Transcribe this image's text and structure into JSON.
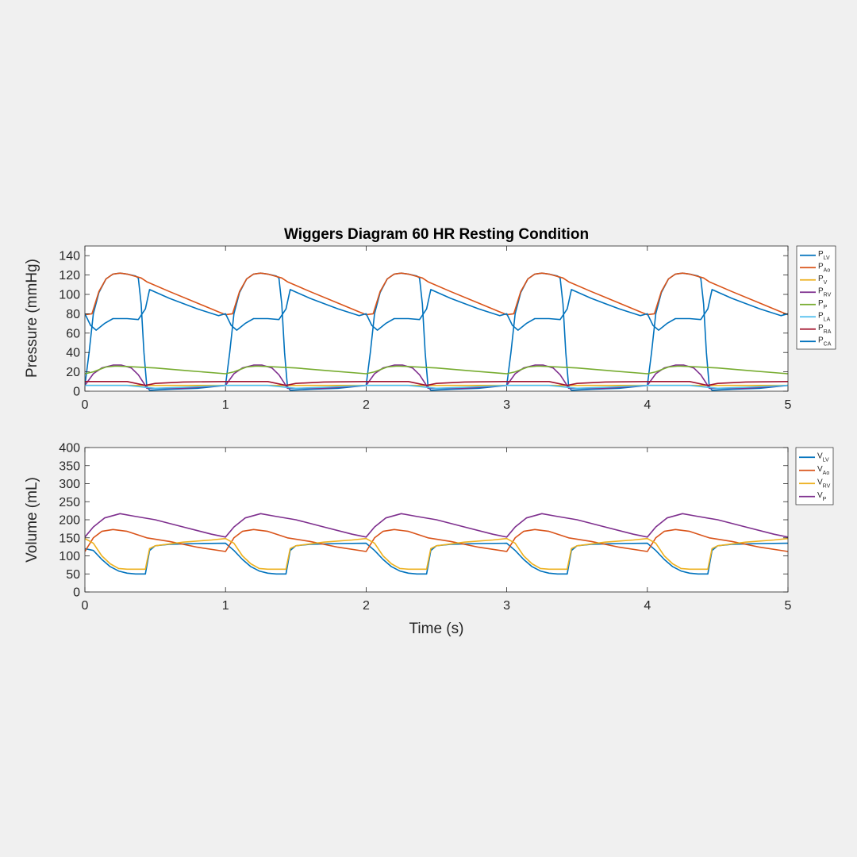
{
  "figure": {
    "title": "Wiggers Diagram 60 HR Resting Condition",
    "background": "#f0f0f0"
  },
  "chart_data": [
    {
      "type": "line",
      "title": "Wiggers Diagram 60 HR Resting Condition",
      "xlabel": "",
      "ylabel": "Pressure (mmHg)",
      "xlim": [
        0,
        5
      ],
      "ylim": [
        0,
        150
      ],
      "xticks": [
        0,
        1,
        2,
        3,
        4,
        5
      ],
      "yticks": [
        0,
        20,
        40,
        60,
        80,
        100,
        120,
        140
      ],
      "grid": false,
      "legend_position": "outside-right",
      "period": 1.0,
      "series": [
        {
          "name": "P",
          "sub": "LV",
          "color": "#0072bd",
          "one_cycle": [
            [
              0.0,
              6
            ],
            [
              0.03,
              40
            ],
            [
              0.06,
              80
            ],
            [
              0.1,
              102
            ],
            [
              0.15,
              116
            ],
            [
              0.2,
              121
            ],
            [
              0.25,
              122
            ],
            [
              0.3,
              121
            ],
            [
              0.36,
              119
            ],
            [
              0.38,
              117
            ],
            [
              0.4,
              90
            ],
            [
              0.42,
              40
            ],
            [
              0.44,
              5
            ],
            [
              0.46,
              1
            ],
            [
              0.6,
              2
            ],
            [
              0.8,
              3
            ],
            [
              1.0,
              6
            ]
          ]
        },
        {
          "name": "P",
          "sub": "Ao",
          "color": "#d95319",
          "one_cycle": [
            [
              0.0,
              79
            ],
            [
              0.05,
              80
            ],
            [
              0.1,
              103
            ],
            [
              0.15,
              116
            ],
            [
              0.2,
              121
            ],
            [
              0.25,
              122
            ],
            [
              0.3,
              121
            ],
            [
              0.4,
              117
            ],
            [
              0.44,
              113
            ],
            [
              0.6,
              103
            ],
            [
              0.8,
              91
            ],
            [
              0.95,
              82
            ],
            [
              1.0,
              79
            ]
          ]
        },
        {
          "name": "P",
          "sub": "V",
          "color": "#edb120",
          "one_cycle": [
            [
              0.0,
              6
            ],
            [
              0.1,
              6
            ],
            [
              0.5,
              6
            ],
            [
              1.0,
              6
            ]
          ]
        },
        {
          "name": "P",
          "sub": "RV",
          "color": "#7e2f8e",
          "one_cycle": [
            [
              0.0,
              6
            ],
            [
              0.06,
              18
            ],
            [
              0.12,
              24
            ],
            [
              0.2,
              27
            ],
            [
              0.26,
              27
            ],
            [
              0.33,
              24
            ],
            [
              0.38,
              17
            ],
            [
              0.42,
              8
            ],
            [
              0.44,
              3
            ],
            [
              0.46,
              3
            ],
            [
              0.7,
              3
            ],
            [
              1.0,
              6
            ]
          ]
        },
        {
          "name": "P",
          "sub": "P",
          "color": "#77ac30",
          "one_cycle": [
            [
              0.0,
              18
            ],
            [
              0.06,
              20
            ],
            [
              0.15,
              25
            ],
            [
              0.22,
              26
            ],
            [
              0.3,
              25.5
            ],
            [
              0.5,
              24
            ],
            [
              0.75,
              21
            ],
            [
              1.0,
              18
            ]
          ]
        },
        {
          "name": "P",
          "sub": "LA",
          "color": "#4dbeee",
          "one_cycle": [
            [
              0.0,
              6
            ],
            [
              0.3,
              6
            ],
            [
              0.43,
              4
            ],
            [
              0.5,
              3
            ],
            [
              0.7,
              4
            ],
            [
              1.0,
              6
            ]
          ]
        },
        {
          "name": "P",
          "sub": "RA",
          "color": "#a2142f",
          "one_cycle": [
            [
              0.0,
              10
            ],
            [
              0.3,
              10
            ],
            [
              0.43,
              6
            ],
            [
              0.5,
              8
            ],
            [
              0.7,
              9.5
            ],
            [
              1.0,
              10
            ]
          ]
        },
        {
          "name": "P",
          "sub": "CA",
          "color": "#0072bd",
          "one_cycle": [
            [
              0.0,
              80
            ],
            [
              0.04,
              68
            ],
            [
              0.08,
              63
            ],
            [
              0.14,
              70
            ],
            [
              0.2,
              75
            ],
            [
              0.3,
              75
            ],
            [
              0.38,
              74
            ],
            [
              0.43,
              85
            ],
            [
              0.46,
              105
            ],
            [
              0.6,
              96
            ],
            [
              0.8,
              85
            ],
            [
              0.95,
              78
            ],
            [
              1.0,
              80
            ]
          ]
        }
      ]
    },
    {
      "type": "line",
      "title": "",
      "xlabel": "Time (s)",
      "ylabel": "Volume (mL)",
      "xlim": [
        0,
        5
      ],
      "ylim": [
        0,
        400
      ],
      "xticks": [
        0,
        1,
        2,
        3,
        4,
        5
      ],
      "yticks": [
        0,
        50,
        100,
        150,
        200,
        250,
        300,
        350,
        400
      ],
      "grid": false,
      "legend_position": "outside-right",
      "period": 1.0,
      "series": [
        {
          "name": "V",
          "sub": "LV",
          "color": "#0072bd",
          "one_cycle": [
            [
              0.0,
              120
            ],
            [
              0.06,
              115
            ],
            [
              0.12,
              90
            ],
            [
              0.18,
              70
            ],
            [
              0.24,
              58
            ],
            [
              0.3,
              52
            ],
            [
              0.36,
              50
            ],
            [
              0.43,
              50
            ],
            [
              0.46,
              115
            ],
            [
              0.5,
              128
            ],
            [
              0.6,
              132
            ],
            [
              0.8,
              134
            ],
            [
              1.0,
              135
            ]
          ]
        },
        {
          "name": "V",
          "sub": "Ao",
          "color": "#d95319",
          "one_cycle": [
            [
              0.0,
              112
            ],
            [
              0.06,
              150
            ],
            [
              0.12,
              168
            ],
            [
              0.2,
              173
            ],
            [
              0.3,
              168
            ],
            [
              0.44,
              150
            ],
            [
              0.6,
              140
            ],
            [
              0.8,
              124
            ],
            [
              1.0,
              112
            ]
          ]
        },
        {
          "name": "V",
          "sub": "RV",
          "color": "#edb120",
          "one_cycle": [
            [
              0.0,
              148
            ],
            [
              0.06,
              135
            ],
            [
              0.12,
              100
            ],
            [
              0.18,
              78
            ],
            [
              0.24,
              65
            ],
            [
              0.3,
              63
            ],
            [
              0.43,
              63
            ],
            [
              0.46,
              120
            ],
            [
              0.5,
              128
            ],
            [
              0.7,
              138
            ],
            [
              0.9,
              144
            ],
            [
              1.0,
              148
            ]
          ]
        },
        {
          "name": "V",
          "sub": "P",
          "color": "#7e2f8e",
          "one_cycle": [
            [
              0.0,
              152
            ],
            [
              0.06,
              180
            ],
            [
              0.14,
              205
            ],
            [
              0.25,
              217
            ],
            [
              0.35,
              210
            ],
            [
              0.5,
              200
            ],
            [
              0.7,
              180
            ],
            [
              0.9,
              160
            ],
            [
              1.0,
              152
            ]
          ]
        }
      ]
    }
  ]
}
